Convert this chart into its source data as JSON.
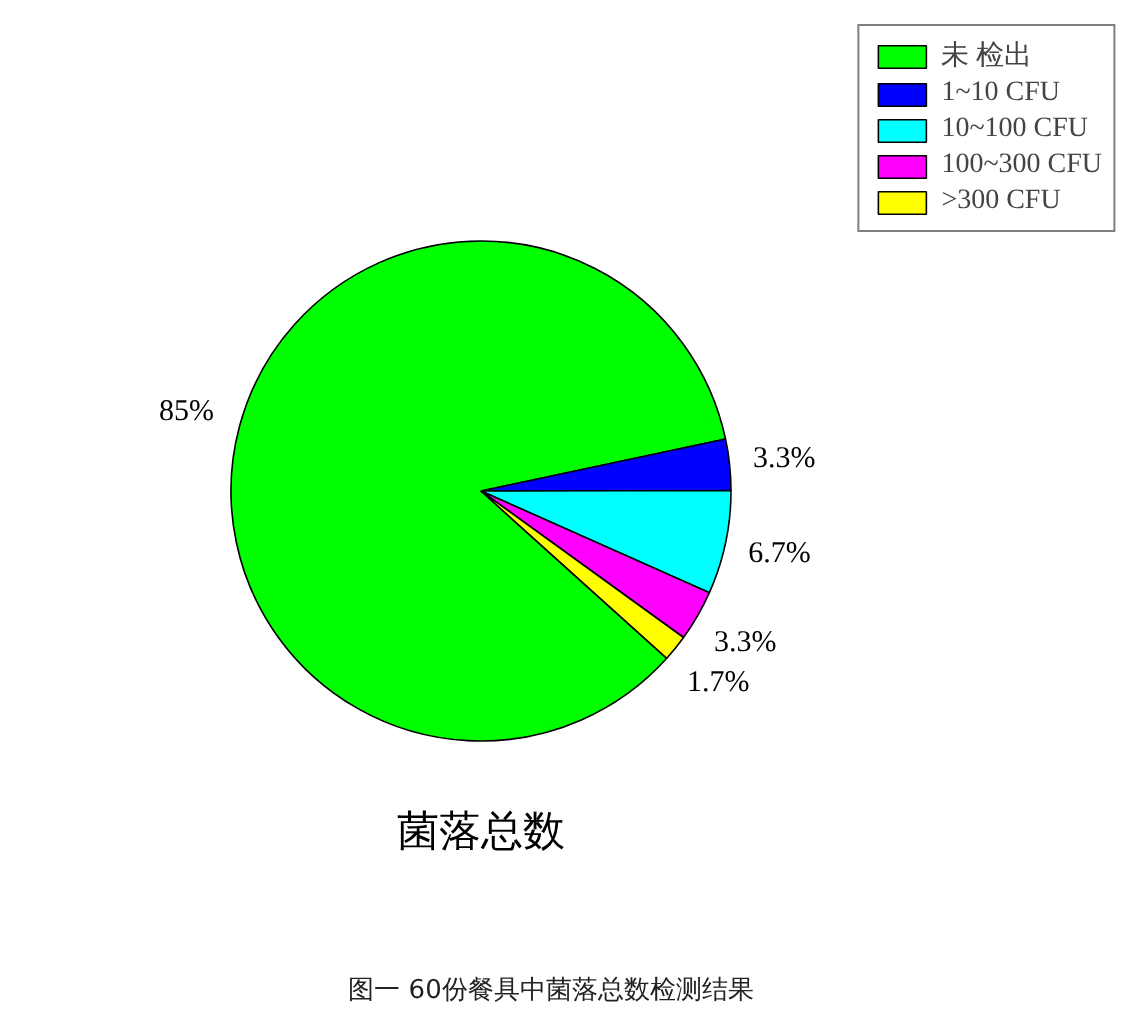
{
  "chart_data": {
    "type": "pie",
    "title": "菌落总数",
    "categories": [
      "未 检出",
      "1~10 CFU",
      "10~100 CFU",
      "100~300 CFU",
      ">300 CFU"
    ],
    "values": [
      85,
      3.3,
      6.7,
      3.3,
      1.7
    ],
    "colors": [
      "#00ff00",
      "#0000ff",
      "#00ffff",
      "#ff00ff",
      "#ffff00"
    ],
    "value_labels": [
      "85%",
      "3.3%",
      "6.7%",
      "3.3%",
      "1.7%"
    ],
    "legend": "top right",
    "annotations": [
      "图一 60份餐具中菌落总数检测结果"
    ]
  }
}
